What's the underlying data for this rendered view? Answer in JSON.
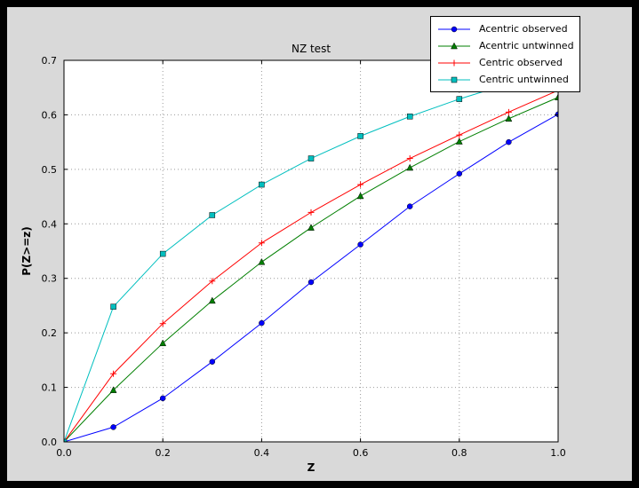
{
  "figure": {
    "outer_background": "#000000",
    "canvas_color": "#d9d9d9",
    "plot_background": "#ffffff",
    "grid_color": "#999999"
  },
  "chart_data": {
    "type": "line",
    "title": "NZ test",
    "xlabel": "Z",
    "ylabel": "P(Z>=z)",
    "xlim": [
      0.0,
      1.0
    ],
    "ylim": [
      0.0,
      0.7
    ],
    "grid": "dotted",
    "legend_position": "top-right",
    "xticks": [
      0.0,
      0.2,
      0.4,
      0.6,
      0.8,
      1.0
    ],
    "xtick_labels": [
      "0.0",
      "0.2",
      "0.4",
      "0.6",
      "0.8",
      "1.0"
    ],
    "yticks": [
      0.0,
      0.1,
      0.2,
      0.3,
      0.4,
      0.5,
      0.6,
      0.7
    ],
    "ytick_labels": [
      "0.0",
      "0.1",
      "0.2",
      "0.3",
      "0.4",
      "0.5",
      "0.6",
      "0.7"
    ],
    "x": [
      0.0,
      0.1,
      0.2,
      0.3,
      0.4,
      0.5,
      0.6,
      0.7,
      0.8,
      0.9,
      1.0
    ],
    "series": [
      {
        "name": "Acentric observed",
        "color": "#0000ff",
        "marker": "circle",
        "values": [
          0.0,
          0.027,
          0.08,
          0.147,
          0.218,
          0.293,
          0.362,
          0.432,
          0.492,
          0.55,
          0.601
        ]
      },
      {
        "name": "Acentric untwinned",
        "color": "#007f00",
        "marker": "triangle",
        "values": [
          0.0,
          0.095,
          0.181,
          0.259,
          0.33,
          0.393,
          0.451,
          0.503,
          0.551,
          0.593,
          0.632
        ]
      },
      {
        "name": "Centric observed",
        "color": "#ff0000",
        "marker": "plus",
        "values": [
          0.0,
          0.125,
          0.217,
          0.295,
          0.365,
          0.421,
          0.472,
          0.52,
          0.563,
          0.605,
          0.645
        ]
      },
      {
        "name": "Centric untwinned",
        "color": "#00bfbf",
        "marker": "square",
        "values": [
          0.0,
          0.248,
          0.345,
          0.416,
          0.472,
          0.52,
          0.561,
          0.597,
          0.629,
          0.657,
          0.683
        ]
      }
    ]
  }
}
